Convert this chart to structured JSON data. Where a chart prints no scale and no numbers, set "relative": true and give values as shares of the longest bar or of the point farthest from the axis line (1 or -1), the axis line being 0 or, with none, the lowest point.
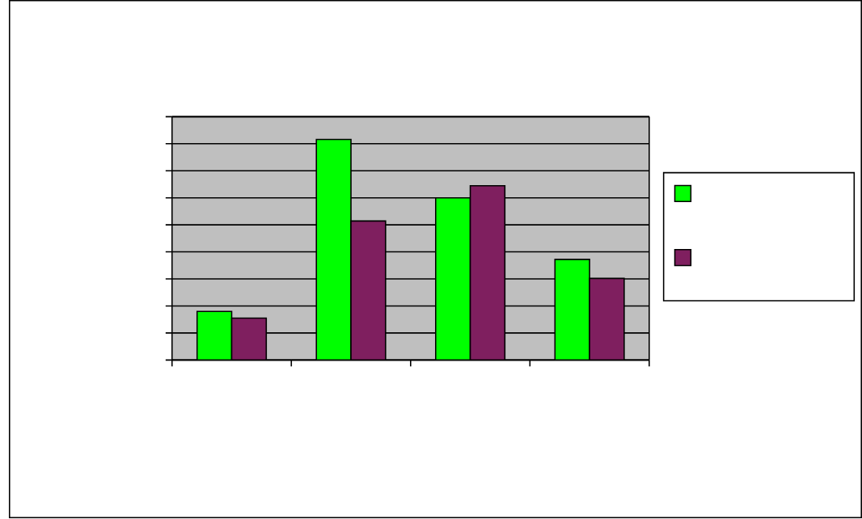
{
  "chart_data": {
    "type": "bar",
    "relative": true,
    "grid": "y",
    "categories": [
      null,
      null,
      null,
      null
    ],
    "series": [
      {
        "color": "#00ff00",
        "values": [
          0.22,
          1,
          0.735,
          0.456
        ]
      },
      {
        "color": "#7f1f5f",
        "values": [
          0.19,
          0.63,
          0.79,
          0.37
        ]
      }
    ]
  }
}
